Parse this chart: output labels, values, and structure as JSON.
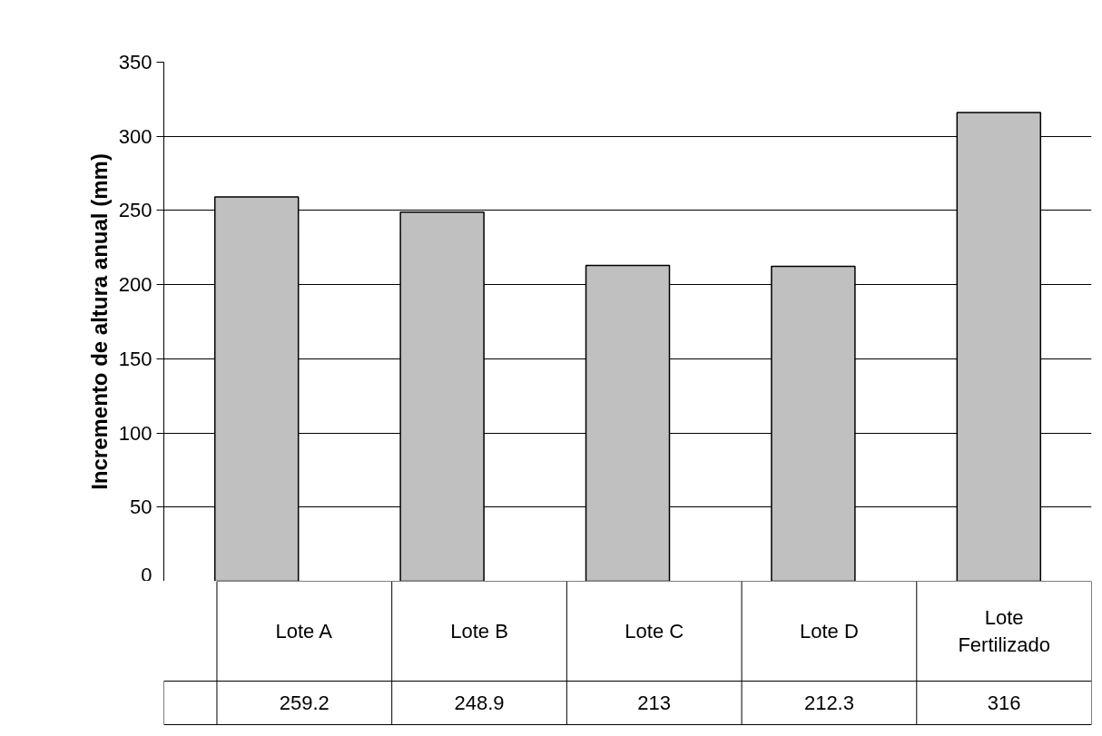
{
  "chart_data": {
    "type": "bar",
    "ylabel": "Incremento de altura anual (mm)",
    "categories": [
      "Lote A",
      "Lote B",
      "Lote C",
      "Lote D",
      "Lote Fertilizado"
    ],
    "values": [
      259.2,
      248.9,
      213,
      212.3,
      316
    ],
    "color": "#c0c0c0",
    "ylim": [
      0,
      350
    ],
    "yticks": [
      0,
      50,
      100,
      150,
      200,
      250,
      300,
      350
    ],
    "grid": "y",
    "data_labels": true
  }
}
